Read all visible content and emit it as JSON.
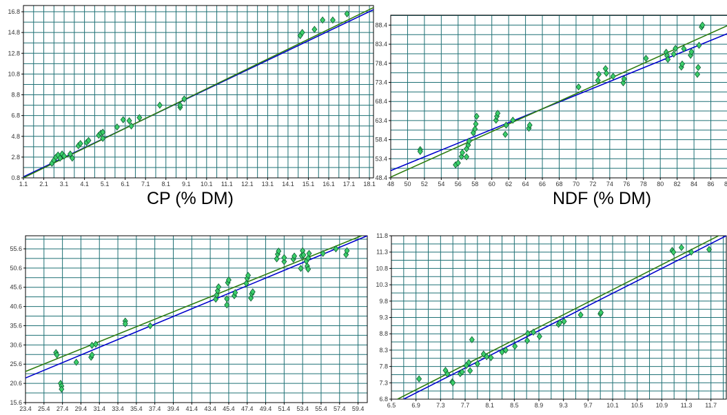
{
  "colors": {
    "grid": "#1c6f73",
    "frame": "#000000",
    "fit_blue": "#0000cc",
    "fit_green": "#2e7d10",
    "marker_fill": "#3ccf6a",
    "marker_edge": "#0d5a33"
  },
  "chart_data": [
    {
      "type": "scatter",
      "id": "cp",
      "xlabel": "CP (% DM)",
      "ylabel": "",
      "xlim": [
        1.1,
        18.3
      ],
      "ylim": [
        0.8,
        17.4
      ],
      "xticks": [
        1.1,
        2.1,
        3.1,
        4.1,
        5.1,
        6.1,
        7.1,
        8.1,
        9.1,
        10.1,
        11.1,
        12.1,
        13.1,
        14.1,
        15.1,
        16.1,
        17.1,
        18.1
      ],
      "xtick_labels": [
        "1.1",
        "2.1",
        "3.1",
        "4.1",
        "5.1",
        "6.1",
        "7.1",
        "8.1",
        "9.1",
        "10.1",
        "11.1",
        "12.1",
        "13.1",
        "14.1",
        "15.1",
        "16.1",
        "17.1",
        "18.1"
      ],
      "yticks": [
        0.8,
        2.8,
        4.8,
        6.8,
        8.8,
        10.8,
        12.8,
        14.8,
        16.8
      ],
      "ytick_labels": [
        "0.8",
        "2.8",
        "4.8",
        "6.8",
        "8.8",
        "10.8",
        "12.8",
        "14.8",
        "16.8"
      ],
      "x_grid_step": 0.5,
      "y_grid_step": 1.0,
      "grid": true,
      "lines": [
        {
          "color": "blue",
          "x1": 1.1,
          "y1": 0.9,
          "x2": 18.3,
          "y2": 17.0
        },
        {
          "color": "green",
          "x1": 1.1,
          "y1": 0.8,
          "x2": 18.3,
          "y2": 17.2
        }
      ],
      "points": [
        [
          2.5,
          2.2
        ],
        [
          2.6,
          2.5
        ],
        [
          2.7,
          2.8
        ],
        [
          2.8,
          3.0
        ],
        [
          2.9,
          2.7
        ],
        [
          3.0,
          3.1
        ],
        [
          3.1,
          2.9
        ],
        [
          3.4,
          3.1
        ],
        [
          3.5,
          2.7
        ],
        [
          3.8,
          3.9
        ],
        [
          3.9,
          4.1
        ],
        [
          4.2,
          4.2
        ],
        [
          4.3,
          4.4
        ],
        [
          4.8,
          4.9
        ],
        [
          4.9,
          5.1
        ],
        [
          5.0,
          4.6
        ],
        [
          5.0,
          5.2
        ],
        [
          5.7,
          5.7
        ],
        [
          6.0,
          6.4
        ],
        [
          6.3,
          6.3
        ],
        [
          6.4,
          5.8
        ],
        [
          6.8,
          6.6
        ],
        [
          7.8,
          7.8
        ],
        [
          8.8,
          7.6
        ],
        [
          8.8,
          7.8
        ],
        [
          9.0,
          8.4
        ],
        [
          14.7,
          14.5
        ],
        [
          14.8,
          14.8
        ],
        [
          15.4,
          15.1
        ],
        [
          15.8,
          16.0
        ],
        [
          16.3,
          16.0
        ],
        [
          17.0,
          16.6
        ]
      ]
    },
    {
      "type": "scatter",
      "id": "ndf",
      "xlabel": "NDF (% DM)",
      "ylabel": "",
      "xlim": [
        48,
        88
      ],
      "ylim": [
        48.4,
        91.0
      ],
      "xticks": [
        48,
        50,
        52,
        54,
        56,
        58,
        60,
        62,
        64,
        66,
        68,
        70,
        72,
        74,
        76,
        78,
        80,
        82,
        84,
        86,
        88
      ],
      "xtick_labels": [
        "48",
        "50",
        "52",
        "54",
        "56",
        "58",
        "60",
        "62",
        "64",
        "66",
        "68",
        "70",
        "72",
        "74",
        "76",
        "78",
        "80",
        "82",
        "84",
        "86",
        "88"
      ],
      "yticks": [
        48.4,
        53.4,
        58.4,
        63.4,
        68.4,
        73.4,
        78.4,
        83.4,
        88.4
      ],
      "ytick_labels": [
        "48.4",
        "53.4",
        "58.4",
        "63.4",
        "68.4",
        "73.4",
        "78.4",
        "83.4",
        "88.4"
      ],
      "x_grid_step": 2,
      "y_grid_step": 2.5,
      "grid": true,
      "lines": [
        {
          "color": "blue",
          "x1": 48,
          "y1": 50.3,
          "x2": 88,
          "y2": 86.2
        },
        {
          "color": "green",
          "x1": 48,
          "y1": 48.6,
          "x2": 88,
          "y2": 88.3
        }
      ],
      "points": [
        [
          51.5,
          55.8
        ],
        [
          51.5,
          55.3
        ],
        [
          55.7,
          51.8
        ],
        [
          56.0,
          52.3
        ],
        [
          56.4,
          54.0
        ],
        [
          56.5,
          55.0
        ],
        [
          57.0,
          53.9
        ],
        [
          57.0,
          56.0
        ],
        [
          57.2,
          57.0
        ],
        [
          57.3,
          58.0
        ],
        [
          57.8,
          60.2
        ],
        [
          58.0,
          61.2
        ],
        [
          58.1,
          62.5
        ],
        [
          58.2,
          64.5
        ],
        [
          60.5,
          63.5
        ],
        [
          60.6,
          64.5
        ],
        [
          60.7,
          65.3
        ],
        [
          61.6,
          59.8
        ],
        [
          61.7,
          62.2
        ],
        [
          62.5,
          63.5
        ],
        [
          64.4,
          61.4
        ],
        [
          64.5,
          62.2
        ],
        [
          70.3,
          72.2
        ],
        [
          72.6,
          73.9
        ],
        [
          72.7,
          75.5
        ],
        [
          73.5,
          77.0
        ],
        [
          73.6,
          75.8
        ],
        [
          74.4,
          75.0
        ],
        [
          75.6,
          73.3
        ],
        [
          75.7,
          74.3
        ],
        [
          78.3,
          79.7
        ],
        [
          80.7,
          81.3
        ],
        [
          80.8,
          80.4
        ],
        [
          80.9,
          79.4
        ],
        [
          81.6,
          80.8
        ],
        [
          81.8,
          82.3
        ],
        [
          82.5,
          77.4
        ],
        [
          82.6,
          78.2
        ],
        [
          82.8,
          82.2
        ],
        [
          83.6,
          80.5
        ],
        [
          83.7,
          81.4
        ],
        [
          84.4,
          75.5
        ],
        [
          84.5,
          77.3
        ],
        [
          84.6,
          83.1
        ],
        [
          84.9,
          87.9
        ],
        [
          85.0,
          88.4
        ]
      ]
    },
    {
      "type": "scatter",
      "id": "panel3",
      "xlabel": "",
      "ylabel": "",
      "xlim": [
        23.4,
        60.4
      ],
      "ylim": [
        15.6,
        59.0
      ],
      "xticks": [
        23.4,
        25.4,
        27.4,
        29.4,
        31.4,
        33.4,
        35.4,
        37.4,
        39.4,
        41.4,
        43.4,
        45.4,
        47.4,
        49.4,
        51.4,
        53.4,
        55.4,
        57.4,
        59.4
      ],
      "xtick_labels": [
        "23.4",
        "25.4",
        "27.4",
        "29.4",
        "31.4",
        "33.4",
        "35.4",
        "37.4",
        "39.4",
        "41.4",
        "43.4",
        "45.4",
        "47.4",
        "49.4",
        "51.4",
        "53.4",
        "55.4",
        "57.4",
        "59.4"
      ],
      "yticks": [
        15.6,
        20.6,
        25.6,
        30.6,
        35.6,
        40.6,
        45.6,
        50.6,
        55.6
      ],
      "ytick_labels": [
        "15.6",
        "20.6",
        "25.6",
        "30.6",
        "35.6",
        "40.6",
        "45.6",
        "50.6",
        "55.6"
      ],
      "x_grid_step": 2,
      "y_grid_step": 2.5,
      "grid": true,
      "lines": [
        {
          "color": "blue",
          "x1": 23.4,
          "y1": 22.0,
          "x2": 60.4,
          "y2": 59.0
        },
        {
          "color": "green",
          "x1": 23.4,
          "y1": 23.7,
          "x2": 60.4,
          "y2": 59.6
        }
      ],
      "points": [
        [
          26.7,
          28.6
        ],
        [
          26.8,
          28.0
        ],
        [
          27.2,
          20.6
        ],
        [
          27.3,
          19.9
        ],
        [
          27.3,
          19.1
        ],
        [
          28.9,
          26.1
        ],
        [
          30.5,
          27.4
        ],
        [
          30.6,
          28.0
        ],
        [
          30.6,
          30.5
        ],
        [
          31.0,
          30.8
        ],
        [
          34.2,
          36.8
        ],
        [
          34.2,
          36.1
        ],
        [
          36.9,
          35.6
        ],
        [
          44.0,
          42.5
        ],
        [
          44.1,
          43.6
        ],
        [
          44.2,
          44.7
        ],
        [
          44.3,
          45.7
        ],
        [
          45.2,
          41.0
        ],
        [
          45.2,
          42.6
        ],
        [
          45.3,
          46.8
        ],
        [
          45.4,
          47.5
        ],
        [
          46.0,
          43.4
        ],
        [
          46.1,
          44.2
        ],
        [
          47.3,
          46.6
        ],
        [
          47.4,
          47.9
        ],
        [
          47.5,
          48.7
        ],
        [
          47.8,
          42.8
        ],
        [
          47.9,
          43.9
        ],
        [
          48.0,
          44.4
        ],
        [
          50.6,
          53.0
        ],
        [
          50.7,
          54.2
        ],
        [
          50.8,
          55.0
        ],
        [
          51.4,
          52.3
        ],
        [
          51.4,
          53.3
        ],
        [
          52.4,
          52.9
        ],
        [
          52.5,
          53.7
        ],
        [
          53.2,
          50.5
        ],
        [
          53.3,
          53.8
        ],
        [
          53.4,
          55.1
        ],
        [
          53.5,
          54.0
        ],
        [
          53.8,
          52.4
        ],
        [
          53.9,
          51.1
        ],
        [
          54.0,
          50.3
        ],
        [
          54.0,
          53.2
        ],
        [
          54.1,
          54.4
        ],
        [
          55.6,
          54.4
        ],
        [
          57.0,
          55.6
        ],
        [
          58.1,
          54.1
        ],
        [
          58.2,
          55.1
        ]
      ]
    },
    {
      "type": "scatter",
      "id": "panel4",
      "xlabel": "",
      "ylabel": "",
      "xlim": [
        6.5,
        11.95
      ],
      "ylim": [
        6.8,
        11.8
      ],
      "xticks": [
        6.5,
        6.9,
        7.3,
        7.7,
        8.1,
        8.5,
        8.9,
        9.3,
        9.7,
        10.1,
        10.5,
        10.9,
        11.3,
        11.7
      ],
      "xtick_labels": [
        "6.5",
        "6.9",
        "7.3",
        "7.7",
        "8.1",
        "8.5",
        "8.9",
        "9.3",
        "9.7",
        "10.1",
        "10.5",
        "10.9",
        "11.3",
        "11.7"
      ],
      "yticks": [
        6.8,
        7.3,
        7.8,
        8.3,
        8.8,
        9.3,
        9.8,
        10.3,
        10.8,
        11.3,
        11.8
      ],
      "ytick_labels": [
        "6.8",
        "7.3",
        "7.8",
        "8.3",
        "8.8",
        "9.3",
        "9.8",
        "10.3",
        "10.8",
        "11.3",
        "11.8"
      ],
      "x_grid_step": 0.2,
      "y_grid_step": 0.25,
      "grid": true,
      "lines": [
        {
          "color": "blue",
          "x1": 6.7,
          "y1": 6.8,
          "x2": 11.95,
          "y2": 11.8
        },
        {
          "color": "green",
          "x1": 6.6,
          "y1": 6.8,
          "x2": 11.95,
          "y2": 11.92
        }
      ],
      "points": [
        [
          6.95,
          7.42
        ],
        [
          7.38,
          7.68
        ],
        [
          7.41,
          7.57
        ],
        [
          7.49,
          7.33
        ],
        [
          7.5,
          7.3
        ],
        [
          7.62,
          7.58
        ],
        [
          7.65,
          7.63
        ],
        [
          7.72,
          7.83
        ],
        [
          7.76,
          7.92
        ],
        [
          7.78,
          7.67
        ],
        [
          7.81,
          8.62
        ],
        [
          7.9,
          7.88
        ],
        [
          8.0,
          8.18
        ],
        [
          8.05,
          8.1
        ],
        [
          8.12,
          8.07
        ],
        [
          8.3,
          8.24
        ],
        [
          8.36,
          8.3
        ],
        [
          8.51,
          8.42
        ],
        [
          8.71,
          8.59
        ],
        [
          8.72,
          8.81
        ],
        [
          8.81,
          8.85
        ],
        [
          8.91,
          8.72
        ],
        [
          9.22,
          9.09
        ],
        [
          9.24,
          9.14
        ],
        [
          9.31,
          9.18
        ],
        [
          9.58,
          9.38
        ],
        [
          9.9,
          9.41
        ],
        [
          9.91,
          9.45
        ],
        [
          11.07,
          11.35
        ],
        [
          11.09,
          11.3
        ],
        [
          11.22,
          11.44
        ],
        [
          11.38,
          11.3
        ],
        [
          11.67,
          11.38
        ]
      ]
    }
  ]
}
